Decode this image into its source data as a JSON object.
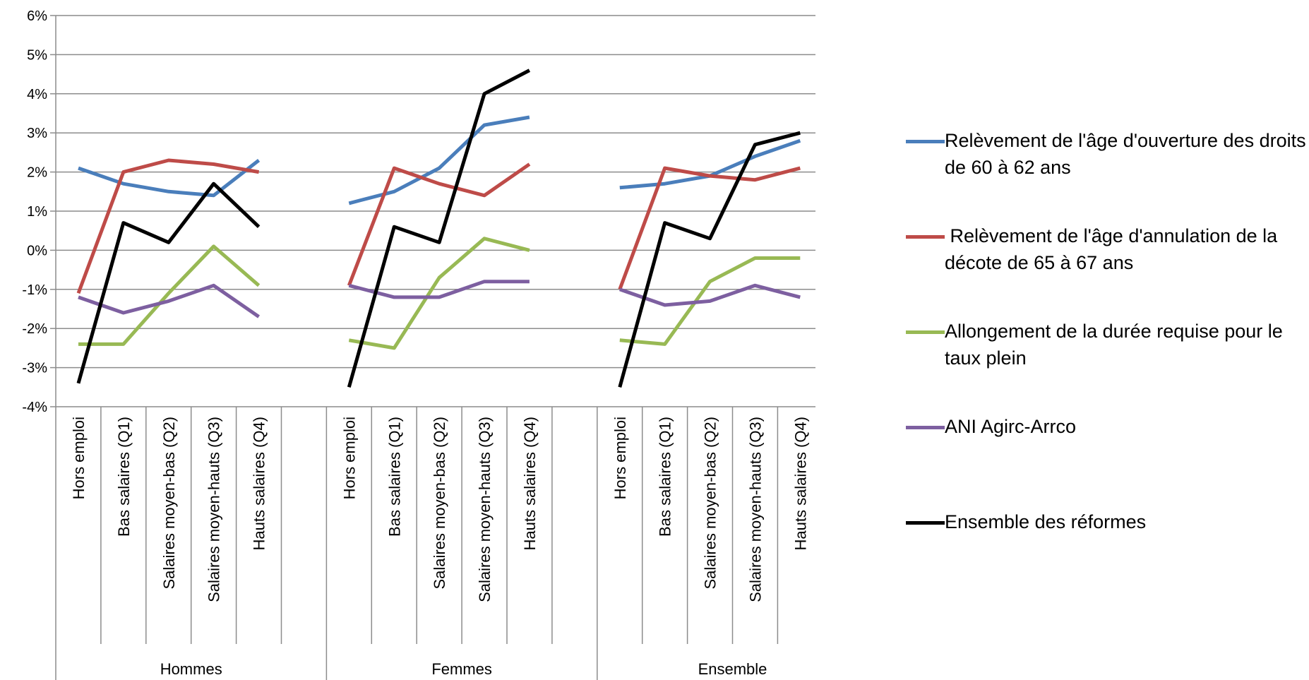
{
  "chart_data": {
    "type": "line",
    "title": "",
    "xlabel": "",
    "ylabel": "",
    "ylim": [
      -4,
      6
    ],
    "y_ticks": [
      -4,
      -3,
      -2,
      -1,
      0,
      1,
      2,
      3,
      4,
      5,
      6
    ],
    "y_tick_labels": [
      "-4%",
      "-3%",
      "-2%",
      "-1%",
      "0%",
      "1%",
      "2%",
      "3%",
      "4%",
      "5%",
      "6%"
    ],
    "grid": "horizontal",
    "legend_position": "right",
    "groups": [
      {
        "name": "Hommes",
        "categories": [
          "Hors emploi",
          "Bas salaires (Q1)",
          "Salaires moyen-bas (Q2)",
          "Salaires moyen-hauts (Q3)",
          "Hauts salaires (Q4)"
        ]
      },
      {
        "name": "Femmes",
        "categories": [
          "Hors emploi",
          "Bas salaires (Q1)",
          "Salaires moyen-bas (Q2)",
          "Salaires moyen-hauts (Q3)",
          "Hauts salaires (Q4)"
        ]
      },
      {
        "name": "Ensemble",
        "categories": [
          "Hors emploi",
          "Bas salaires (Q1)",
          "Salaires moyen-bas (Q2)",
          "Salaires moyen-hauts (Q3)",
          "Hauts salaires (Q4)"
        ]
      }
    ],
    "series": [
      {
        "name": "Relèvement de l'âge d'ouverture des droits de 60 à 62 ans",
        "color": "#4a7ebb",
        "values": [
          [
            2.1,
            1.7,
            1.5,
            1.4,
            2.3
          ],
          [
            1.2,
            1.5,
            2.1,
            3.2,
            3.4
          ],
          [
            1.6,
            1.7,
            1.9,
            2.4,
            2.8
          ]
        ]
      },
      {
        "name": " Relèvement de l'âge d'annulation de la décote de 65 à 67 ans",
        "color": "#be4b48",
        "values": [
          [
            -1.1,
            2.0,
            2.3,
            2.2,
            2.0
          ],
          [
            -0.9,
            2.1,
            1.7,
            1.4,
            2.2
          ],
          [
            -1.0,
            2.1,
            1.9,
            1.8,
            2.1
          ]
        ]
      },
      {
        "name": "Allongement de la durée requise pour le taux plein",
        "color": "#98b954",
        "values": [
          [
            -2.4,
            -2.4,
            -1.1,
            0.1,
            -0.9
          ],
          [
            -2.3,
            -2.5,
            -0.7,
            0.3,
            0.0
          ],
          [
            -2.3,
            -2.4,
            -0.8,
            -0.2,
            -0.2
          ]
        ]
      },
      {
        "name": "ANI Agirc-Arrco",
        "color": "#7d5fa0",
        "values": [
          [
            -1.2,
            -1.6,
            -1.3,
            -0.9,
            -1.7
          ],
          [
            -0.9,
            -1.2,
            -1.2,
            -0.8,
            -0.8
          ],
          [
            -1.0,
            -1.4,
            -1.3,
            -0.9,
            -1.2
          ]
        ]
      },
      {
        "name": "Ensemble des réformes",
        "color": "#000000",
        "values": [
          [
            -3.4,
            0.7,
            0.2,
            1.7,
            0.6
          ],
          [
            -3.5,
            0.6,
            0.2,
            4.0,
            4.6
          ],
          [
            -3.5,
            0.7,
            0.3,
            2.7,
            3.0
          ]
        ]
      }
    ]
  }
}
